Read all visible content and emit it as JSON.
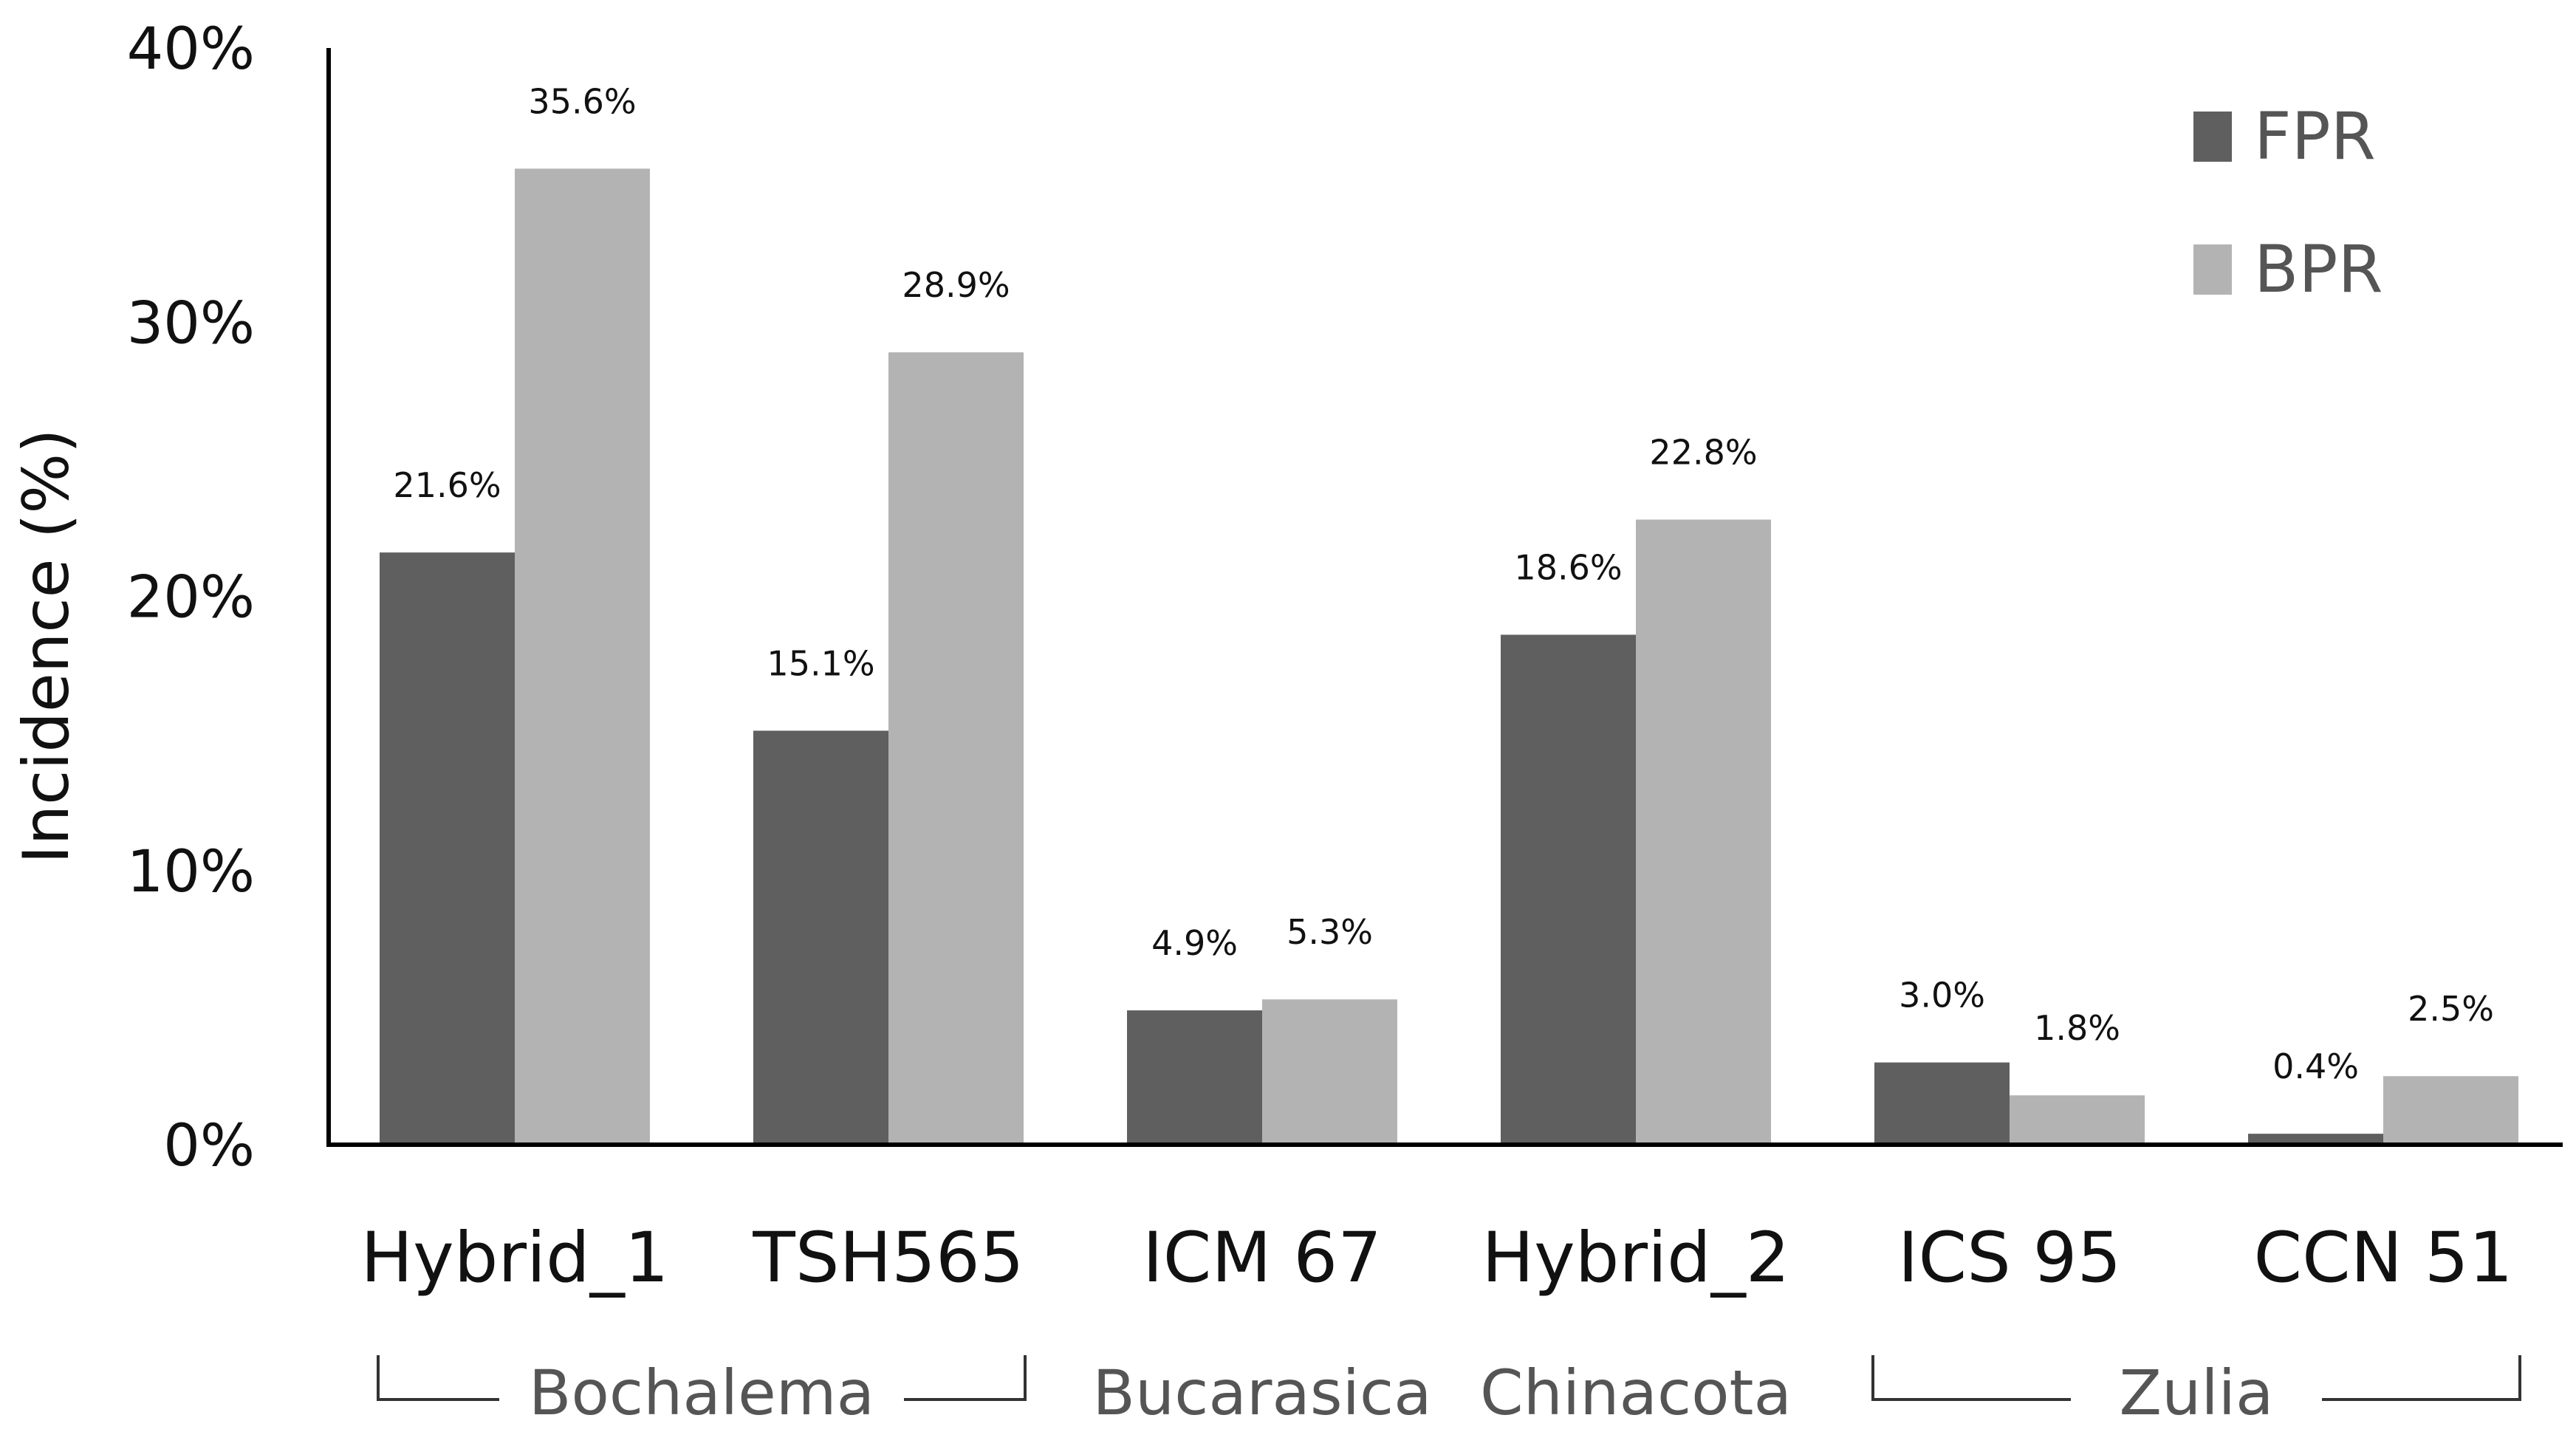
{
  "chart_data": {
    "type": "bar",
    "title": "",
    "xlabel": "",
    "ylabel": "Incidence (%)",
    "ylim": [
      0,
      40
    ],
    "yticks": [
      "0%",
      "10%",
      "20%",
      "30%",
      "40%"
    ],
    "categories": [
      "Hybrid_1",
      "TSH565",
      "ICM 67",
      "Hybrid_2",
      "ICS 95",
      "CCN 51"
    ],
    "series": [
      {
        "name": "FPR",
        "color": "#5f5f5f",
        "values": [
          21.6,
          15.1,
          4.9,
          18.6,
          3.0,
          0.4
        ],
        "labels": [
          "21.6%",
          "15.1%",
          "4.9%",
          "18.6%",
          "3.0%",
          "0.4%"
        ]
      },
      {
        "name": "BPR",
        "color": "#b3b3b3",
        "values": [
          35.6,
          28.9,
          5.3,
          22.8,
          1.8,
          2.5
        ],
        "labels": [
          "35.6%",
          "28.9%",
          "5.3%",
          "22.8%",
          "1.8%",
          "2.5%"
        ]
      }
    ],
    "groups": [
      {
        "label": "Bochalema",
        "categories": [
          "Hybrid_1",
          "TSH565"
        ],
        "bracket": true
      },
      {
        "label": "Bucarasica",
        "categories": [
          "ICM 67"
        ],
        "bracket": false
      },
      {
        "label": "Chinacota",
        "categories": [
          "Hybrid_2"
        ],
        "bracket": false
      },
      {
        "label": "Zulia",
        "categories": [
          "ICS 95",
          "CCN 51"
        ],
        "bracket": true
      }
    ],
    "legend": {
      "position": "top-right",
      "entries": [
        "FPR",
        "BPR"
      ]
    },
    "grid": false
  }
}
